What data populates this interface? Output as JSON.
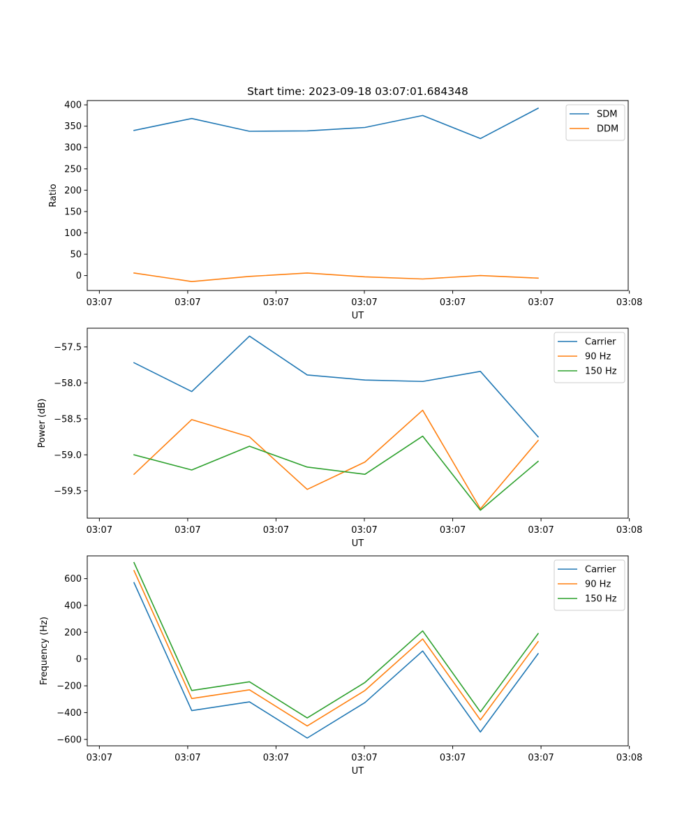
{
  "chart_data": [
    {
      "type": "line",
      "title": "Start time: 2023-09-18 03:07:01.684348",
      "xlabel": "UT",
      "ylabel": "Ratio",
      "x": [
        1,
        2,
        3,
        4,
        5,
        6,
        7,
        8
      ],
      "xlim": [
        0.19,
        9.56
      ],
      "xticks": [
        0.4,
        1.93,
        3.46,
        4.99,
        6.52,
        8.05,
        9.58
      ],
      "xtick_labels": [
        "03:07",
        "03:07",
        "03:07",
        "03:07",
        "03:07",
        "03:07",
        "03:08"
      ],
      "ylim": [
        -35,
        410
      ],
      "yticks": [
        0,
        50,
        100,
        150,
        200,
        250,
        300,
        350,
        400
      ],
      "ytick_labels": [
        "0",
        "50",
        "100",
        "150",
        "200",
        "250",
        "300",
        "350",
        "400"
      ],
      "legend_position": "top-right",
      "series": [
        {
          "name": "SDM",
          "color": "#1f77b4",
          "values": [
            340,
            368,
            338,
            339,
            347,
            375,
            321,
            392
          ]
        },
        {
          "name": "DDM",
          "color": "#ff7f0e",
          "values": [
            6,
            -14,
            -2,
            6,
            -3,
            -8,
            0,
            -6
          ]
        }
      ]
    },
    {
      "type": "line",
      "title": "",
      "xlabel": "UT",
      "ylabel": "Power (dB)",
      "x": [
        1,
        2,
        3,
        4,
        5,
        6,
        7,
        8
      ],
      "xlim": [
        0.19,
        9.56
      ],
      "xticks": [
        0.4,
        1.93,
        3.46,
        4.99,
        6.52,
        8.05,
        9.58
      ],
      "xtick_labels": [
        "03:07",
        "03:07",
        "03:07",
        "03:07",
        "03:07",
        "03:07",
        "03:08"
      ],
      "ylim": [
        -59.88,
        -57.24
      ],
      "yticks": [
        -59.5,
        -59.0,
        -58.5,
        -58.0,
        -57.5
      ],
      "ytick_labels": [
        "−59.5",
        "−59.0",
        "−58.5",
        "−58.0",
        "−57.5"
      ],
      "legend_position": "top-right",
      "series": [
        {
          "name": "Carrier",
          "color": "#1f77b4",
          "values": [
            -57.72,
            -58.12,
            -57.35,
            -57.89,
            -57.96,
            -57.98,
            -57.84,
            -58.75
          ]
        },
        {
          "name": "90 Hz",
          "color": "#ff7f0e",
          "values": [
            -59.27,
            -58.51,
            -58.75,
            -59.48,
            -59.1,
            -58.38,
            -59.75,
            -58.8
          ]
        },
        {
          "name": "150 Hz",
          "color": "#2ca02c",
          "values": [
            -59.0,
            -59.21,
            -58.88,
            -59.17,
            -59.27,
            -58.74,
            -59.77,
            -59.09
          ]
        }
      ]
    },
    {
      "type": "line",
      "title": "",
      "xlabel": "UT",
      "ylabel": "Frequency (Hz)",
      "x": [
        1,
        2,
        3,
        4,
        5,
        6,
        7,
        8
      ],
      "xlim": [
        0.19,
        9.56
      ],
      "xticks": [
        0.4,
        1.93,
        3.46,
        4.99,
        6.52,
        8.05,
        9.58
      ],
      "xtick_labels": [
        "03:07",
        "03:07",
        "03:07",
        "03:07",
        "03:07",
        "03:07",
        "03:08"
      ],
      "ylim": [
        -648,
        770
      ],
      "yticks": [
        -600,
        -400,
        -200,
        0,
        200,
        400,
        600
      ],
      "ytick_labels": [
        "−600",
        "−400",
        "−200",
        "0",
        "200",
        "400",
        "600"
      ],
      "legend_position": "top-right",
      "series": [
        {
          "name": "Carrier",
          "color": "#1f77b4",
          "values": [
            570,
            -385,
            -320,
            -590,
            -325,
            60,
            -545,
            40
          ]
        },
        {
          "name": "90 Hz",
          "color": "#ff7f0e",
          "values": [
            660,
            -295,
            -230,
            -500,
            -235,
            150,
            -455,
            130
          ]
        },
        {
          "name": "150 Hz",
          "color": "#2ca02c",
          "values": [
            720,
            -235,
            -170,
            -440,
            -175,
            210,
            -395,
            190
          ]
        }
      ]
    }
  ]
}
